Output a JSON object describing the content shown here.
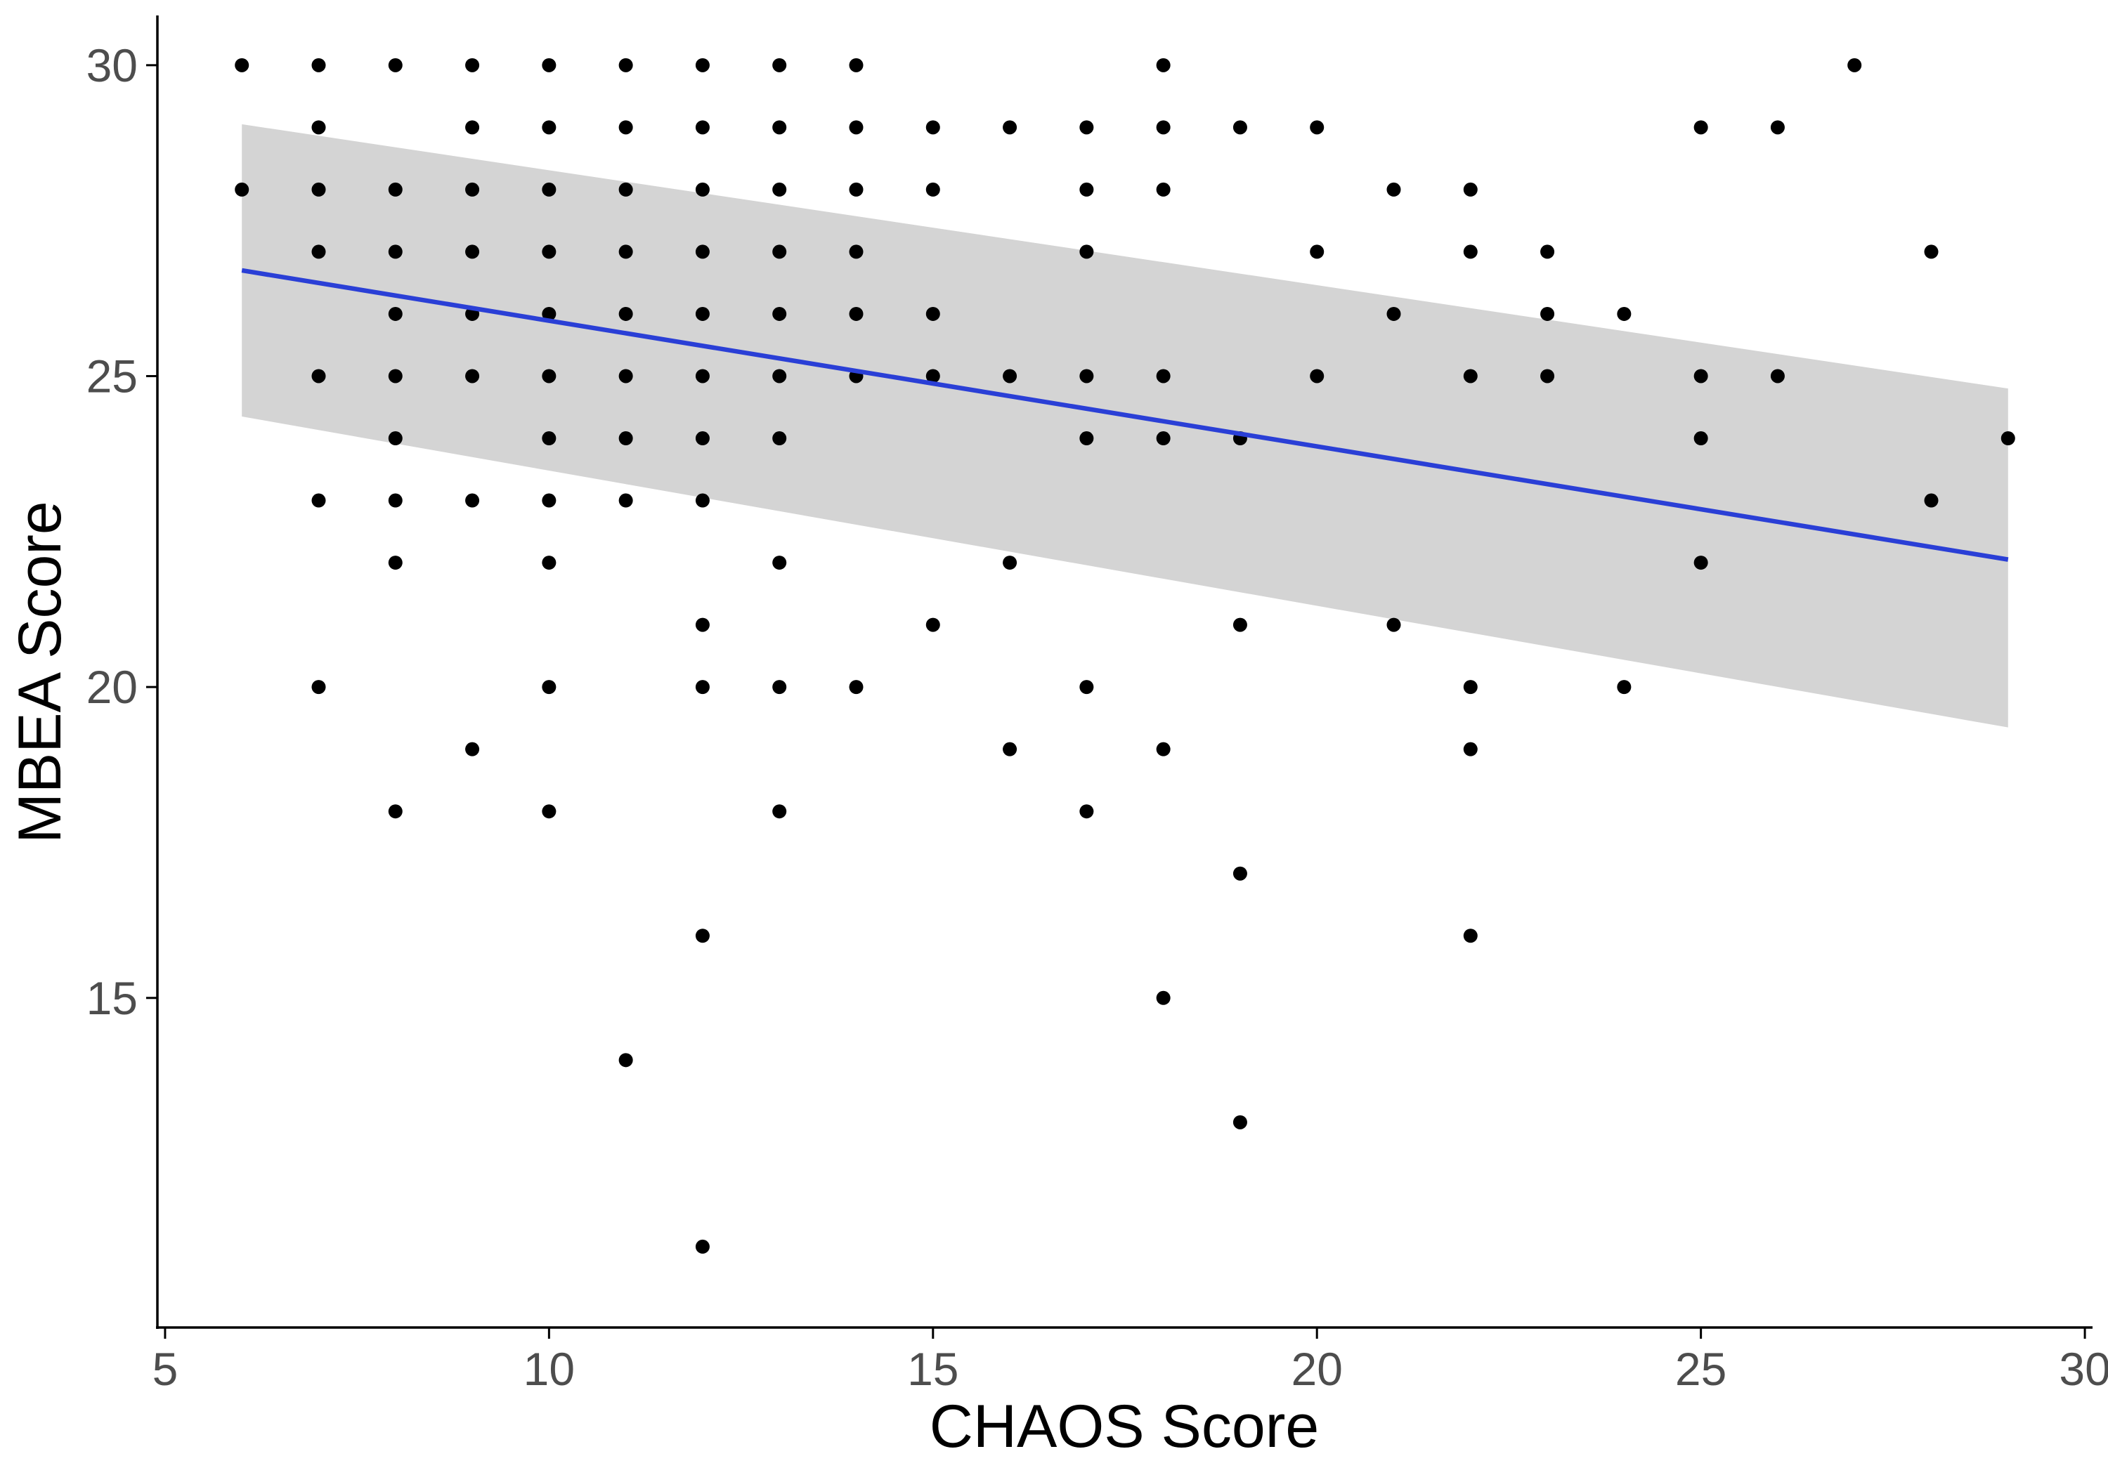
{
  "chart_data": {
    "type": "scatter",
    "title": "",
    "xlabel": "CHAOS Score",
    "ylabel": "MBEA Score",
    "xlim": [
      4.9,
      30.1
    ],
    "ylim": [
      9.7,
      30.8
    ],
    "x_ticks": [
      5,
      10,
      15,
      20,
      25,
      30
    ],
    "y_ticks": [
      15,
      20,
      25,
      30
    ],
    "grid": false,
    "legend": "none",
    "colors": {
      "points": "#000000",
      "fit_line": "#2a3fd6",
      "ci_band": "#d4d4d4",
      "axis": "#000000",
      "tick_text": "#4d4d4d"
    },
    "fit": {
      "method": "linear",
      "x_range": [
        6,
        29
      ],
      "y_at_start": 26.7,
      "y_at_end": 22.05,
      "ci_upper_start": 29.05,
      "ci_upper_end": 24.8,
      "ci_lower_start": 24.35,
      "ci_lower_end": 19.35
    },
    "points": [
      [
        6,
        30
      ],
      [
        6,
        28
      ],
      [
        7,
        30
      ],
      [
        7,
        29
      ],
      [
        7,
        28
      ],
      [
        7,
        27
      ],
      [
        7,
        25
      ],
      [
        7,
        23
      ],
      [
        7,
        20
      ],
      [
        8,
        30
      ],
      [
        8,
        28
      ],
      [
        8,
        27
      ],
      [
        8,
        26
      ],
      [
        8,
        25
      ],
      [
        8,
        24
      ],
      [
        8,
        23
      ],
      [
        8,
        22
      ],
      [
        8,
        18
      ],
      [
        9,
        30
      ],
      [
        9,
        29
      ],
      [
        9,
        28
      ],
      [
        9,
        27
      ],
      [
        9,
        26
      ],
      [
        9,
        25
      ],
      [
        9,
        23
      ],
      [
        9,
        19
      ],
      [
        10,
        30
      ],
      [
        10,
        29
      ],
      [
        10,
        28
      ],
      [
        10,
        27
      ],
      [
        10,
        26
      ],
      [
        10,
        25
      ],
      [
        10,
        24
      ],
      [
        10,
        23
      ],
      [
        10,
        22
      ],
      [
        10,
        20
      ],
      [
        10,
        18
      ],
      [
        11,
        30
      ],
      [
        11,
        29
      ],
      [
        11,
        28
      ],
      [
        11,
        27
      ],
      [
        11,
        26
      ],
      [
        11,
        25
      ],
      [
        11,
        24
      ],
      [
        11,
        23
      ],
      [
        11,
        14
      ],
      [
        12,
        30
      ],
      [
        12,
        29
      ],
      [
        12,
        28
      ],
      [
        12,
        27
      ],
      [
        12,
        26
      ],
      [
        12,
        25
      ],
      [
        12,
        24
      ],
      [
        12,
        23
      ],
      [
        12,
        21
      ],
      [
        12,
        20
      ],
      [
        12,
        16
      ],
      [
        12,
        11
      ],
      [
        13,
        30
      ],
      [
        13,
        29
      ],
      [
        13,
        28
      ],
      [
        13,
        27
      ],
      [
        13,
        26
      ],
      [
        13,
        25
      ],
      [
        13,
        24
      ],
      [
        13,
        22
      ],
      [
        13,
        20
      ],
      [
        13,
        18
      ],
      [
        14,
        30
      ],
      [
        14,
        29
      ],
      [
        14,
        28
      ],
      [
        14,
        27
      ],
      [
        14,
        26
      ],
      [
        14,
        25
      ],
      [
        14,
        20
      ],
      [
        15,
        29
      ],
      [
        15,
        28
      ],
      [
        15,
        26
      ],
      [
        15,
        25
      ],
      [
        15,
        21
      ],
      [
        16,
        29
      ],
      [
        16,
        25
      ],
      [
        16,
        22
      ],
      [
        16,
        19
      ],
      [
        17,
        29
      ],
      [
        17,
        28
      ],
      [
        17,
        27
      ],
      [
        17,
        25
      ],
      [
        17,
        24
      ],
      [
        17,
        20
      ],
      [
        17,
        18
      ],
      [
        18,
        30
      ],
      [
        18,
        29
      ],
      [
        18,
        28
      ],
      [
        18,
        25
      ],
      [
        18,
        24
      ],
      [
        18,
        19
      ],
      [
        18,
        15
      ],
      [
        19,
        29
      ],
      [
        19,
        24
      ],
      [
        19,
        21
      ],
      [
        19,
        17
      ],
      [
        19,
        13
      ],
      [
        20,
        29
      ],
      [
        20,
        27
      ],
      [
        20,
        25
      ],
      [
        21,
        28
      ],
      [
        21,
        26
      ],
      [
        21,
        21
      ],
      [
        22,
        28
      ],
      [
        22,
        27
      ],
      [
        22,
        25
      ],
      [
        22,
        20
      ],
      [
        22,
        19
      ],
      [
        22,
        16
      ],
      [
        23,
        27
      ],
      [
        23,
        26
      ],
      [
        23,
        25
      ],
      [
        24,
        26
      ],
      [
        24,
        20
      ],
      [
        25,
        29
      ],
      [
        25,
        25
      ],
      [
        25,
        24
      ],
      [
        25,
        22
      ],
      [
        26,
        29
      ],
      [
        26,
        25
      ],
      [
        27,
        30
      ],
      [
        28,
        27
      ],
      [
        28,
        23
      ],
      [
        29,
        24
      ]
    ]
  }
}
